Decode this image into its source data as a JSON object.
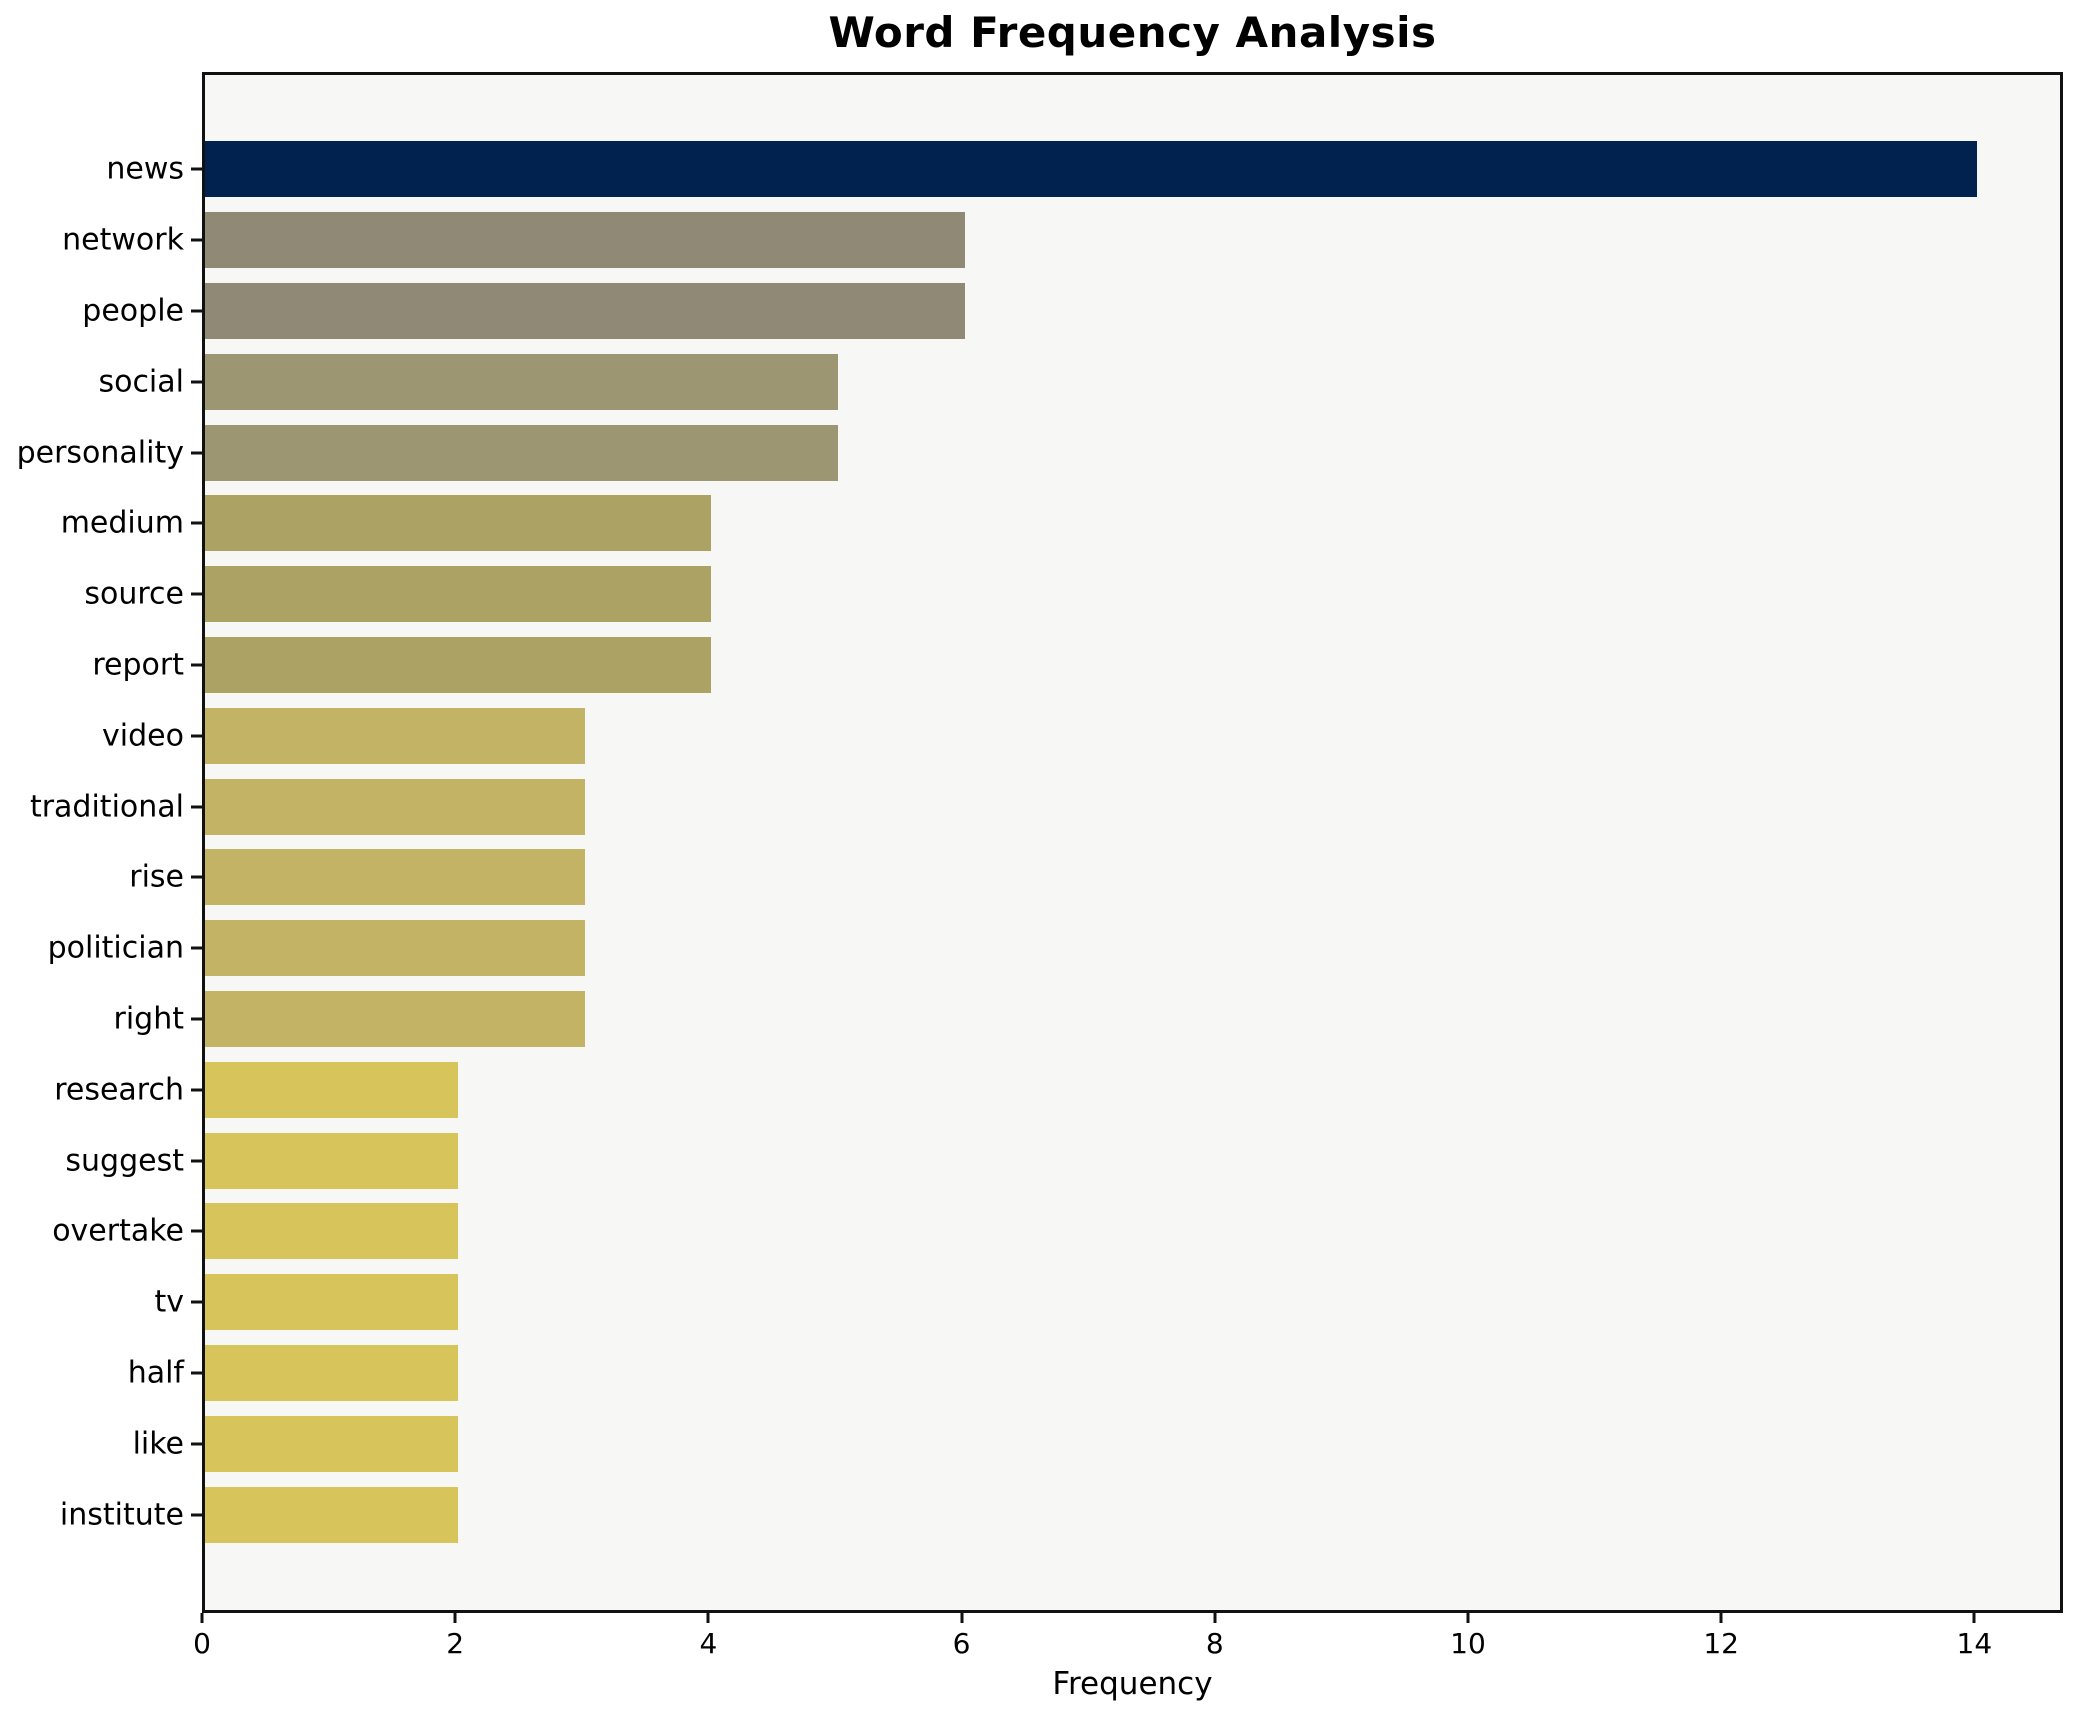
{
  "chart_data": {
    "type": "bar",
    "orientation": "horizontal",
    "title": "Word Frequency Analysis",
    "xlabel": "Frequency",
    "ylabel": "",
    "categories": [
      "news",
      "network",
      "people",
      "social",
      "personality",
      "medium",
      "source",
      "report",
      "video",
      "traditional",
      "rise",
      "politician",
      "right",
      "research",
      "suggest",
      "overtake",
      "tv",
      "half",
      "like",
      "institute"
    ],
    "values": [
      14,
      6,
      6,
      5,
      5,
      4,
      4,
      4,
      3,
      3,
      3,
      3,
      3,
      2,
      2,
      2,
      2,
      2,
      2,
      2
    ],
    "bar_colors": [
      "#01224e",
      "#8f8975",
      "#8f8975",
      "#9d9672",
      "#9d9672",
      "#aba264",
      "#aba264",
      "#aba264",
      "#c3b364",
      "#c3b364",
      "#c3b364",
      "#c3b364",
      "#c3b364",
      "#d7c55b",
      "#d7c55b",
      "#d7c55b",
      "#d7c55b",
      "#d7c55b",
      "#d7c55b",
      "#d7c55b"
    ],
    "xlim": [
      0,
      14.7
    ],
    "xticks": [
      0,
      2,
      4,
      6,
      8,
      10,
      12,
      14
    ],
    "grid": false,
    "legend_position": "none",
    "plot_background": "#f7f7f5",
    "figure_background": "#ffffff",
    "spine_color": "#111111"
  }
}
